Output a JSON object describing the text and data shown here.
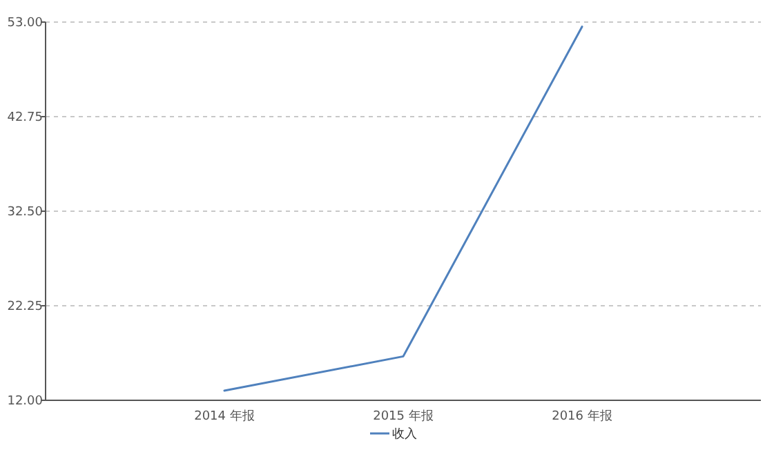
{
  "chart_data": {
    "type": "line",
    "categories": [
      "2014 年报",
      "2015 年报",
      "2016 年报"
    ],
    "series": [
      {
        "name": "收入",
        "color": "#4f81bd",
        "values": [
          13.05,
          16.76,
          52.5
        ]
      }
    ],
    "ylim": [
      12,
      53
    ],
    "yticks": [
      {
        "value": 12,
        "label": "12.00"
      },
      {
        "value": 22.25,
        "label": "22.25"
      },
      {
        "value": 32.5,
        "label": "32.50"
      },
      {
        "value": 42.75,
        "label": "42.75"
      },
      {
        "value": 53,
        "label": "53.00"
      }
    ],
    "grid": "y",
    "legend": "bottom",
    "marker": "none",
    "line_style": "solid"
  }
}
